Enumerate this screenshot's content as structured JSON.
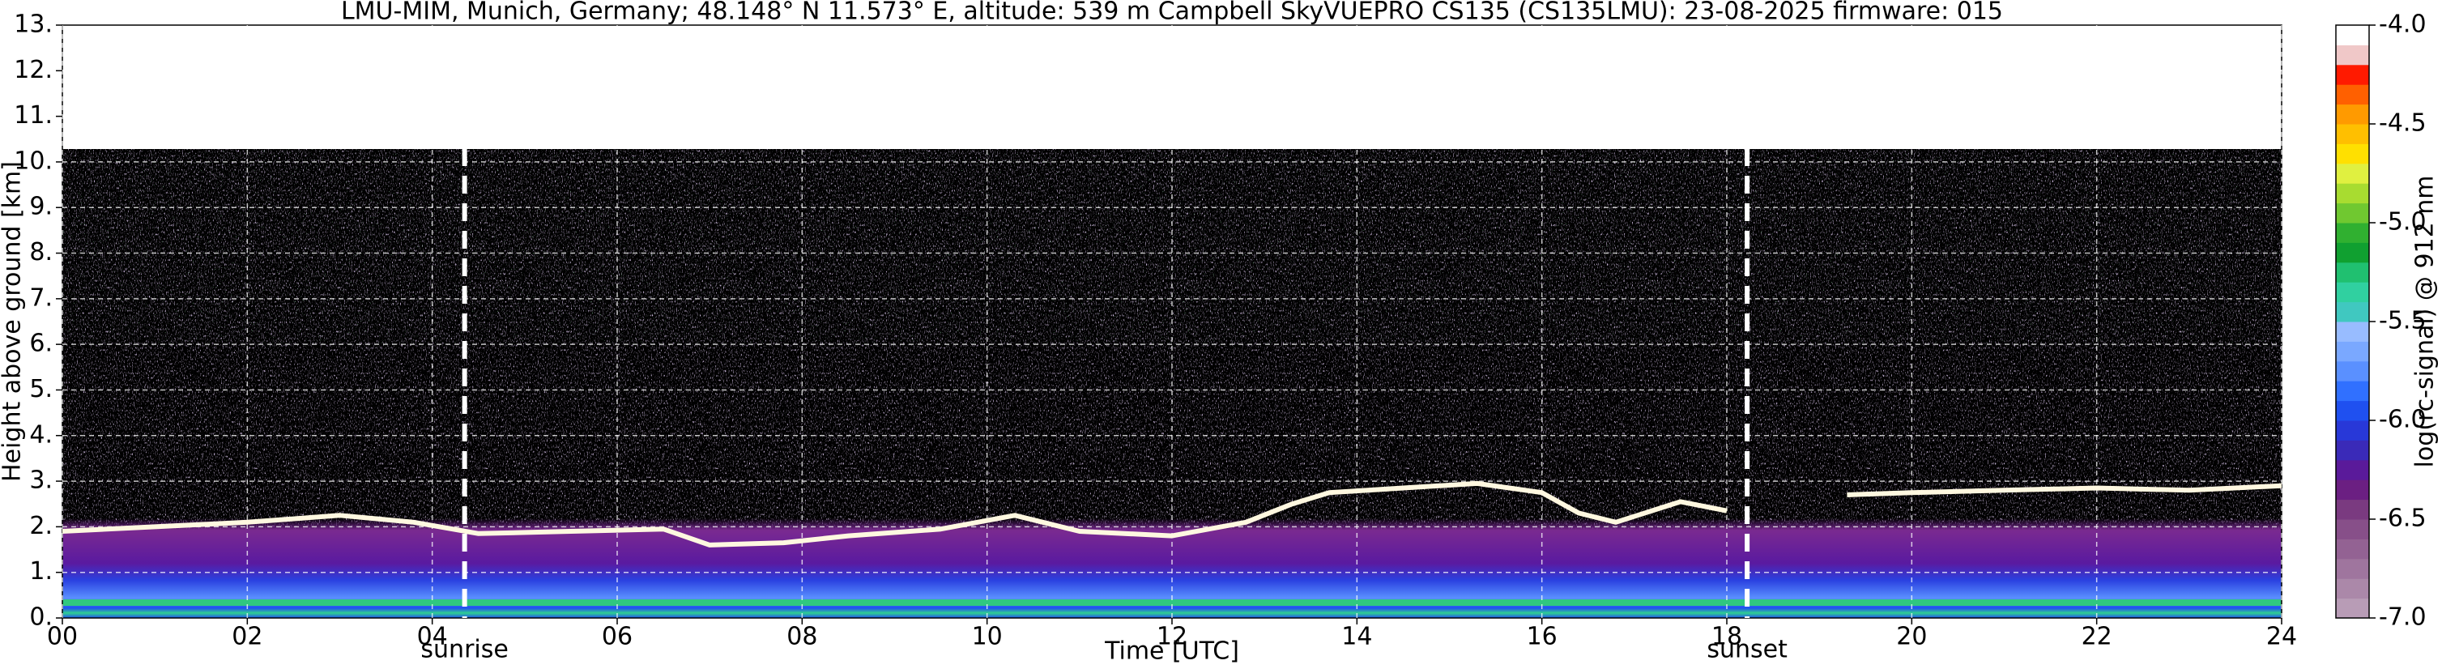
{
  "chart_data": {
    "type": "heatmap",
    "title": "LMU-MIM, Munich, Germany; 48.148° N 11.573° E, altitude: 539 m    Campbell SkyVUEPRO CS135 (CS135LMU): 23-08-2025    firmware: 015",
    "xlabel": "Time [UTC]",
    "ylabel": "Height above ground [km]",
    "xlim": [
      0,
      24
    ],
    "xticks": [
      {
        "value": 0,
        "label": "00"
      },
      {
        "value": 2,
        "label": "02"
      },
      {
        "value": 4,
        "label": "04"
      },
      {
        "value": 6,
        "label": "06"
      },
      {
        "value": 8,
        "label": "08"
      },
      10,
      12,
      14,
      16,
      18,
      20,
      22,
      24
    ],
    "ylim": [
      0,
      13
    ],
    "yticks": [
      {
        "value": 0,
        "label": "0."
      },
      {
        "value": 1,
        "label": "1."
      },
      {
        "value": 2,
        "label": "2."
      },
      {
        "value": 3,
        "label": "3."
      },
      {
        "value": 4,
        "label": "4."
      },
      {
        "value": 5,
        "label": "5."
      },
      {
        "value": 6,
        "label": "6."
      },
      {
        "value": 7,
        "label": "7."
      },
      {
        "value": 8,
        "label": "8."
      },
      {
        "value": 9,
        "label": "9."
      },
      {
        "value": 10,
        "label": "10."
      },
      {
        "value": 11,
        "label": "11."
      },
      {
        "value": 12,
        "label": "12."
      },
      {
        "value": 13,
        "label": "13."
      }
    ],
    "grid": true,
    "annotations": [
      {
        "text": "sunrise",
        "x": 4.35
      },
      {
        "text": "sunset",
        "x": 18.22
      }
    ],
    "layer": {
      "color": "#fff8e0",
      "x": [
        0,
        1,
        2,
        3,
        3.8,
        4.5,
        5.5,
        6.5,
        7,
        7.8,
        8.5,
        9.5,
        10.3,
        11,
        12,
        12.8,
        13.3,
        13.7,
        14.5,
        15.3,
        16,
        16.4,
        16.8,
        17.5,
        18,
        18.6,
        19.3,
        20,
        21,
        22,
        23,
        24
      ],
      "values": [
        1.9,
        2.0,
        2.1,
        2.25,
        2.1,
        1.85,
        1.9,
        1.95,
        1.6,
        1.65,
        1.8,
        1.95,
        2.25,
        1.9,
        1.8,
        2.1,
        2.5,
        2.75,
        2.85,
        2.95,
        2.75,
        2.3,
        2.1,
        2.55,
        2.35,
        null,
        2.7,
        2.75,
        2.8,
        2.85,
        2.8,
        2.9
      ]
    },
    "colorbar": {
      "label": "log(rc-signal) @ 912 nm",
      "lim": [
        -7,
        -4
      ],
      "ticks": [
        {
          "value": -4,
          "label": "-4.0"
        },
        {
          "value": -4.5,
          "label": "-4.5"
        },
        {
          "value": -5,
          "label": "-5.0"
        },
        {
          "value": -5.5,
          "label": "-5.5"
        },
        {
          "value": -6,
          "label": "-6.0"
        },
        {
          "value": -6.5,
          "label": "-6.5"
        },
        {
          "value": -7,
          "label": "-7.0"
        }
      ],
      "colors": [
        "#b89cb6",
        "#ab88a9",
        "#9f759e",
        "#936293",
        "#874f89",
        "#7a3a80",
        "#6b1f82",
        "#5a1a9a",
        "#3a2ab8",
        "#2838d8",
        "#1f50f0",
        "#3070ff",
        "#5a90ff",
        "#7aa8ff",
        "#98bcff",
        "#40c8c0",
        "#30d0a0",
        "#20c070",
        "#10a030",
        "#30b030",
        "#70c830",
        "#a8dc30",
        "#e0f040",
        "#ffe000",
        "#ffbf00",
        "#ff9a00",
        "#ff6000",
        "#ff1a00",
        "#f0c8c8",
        "#ffffff"
      ]
    }
  }
}
